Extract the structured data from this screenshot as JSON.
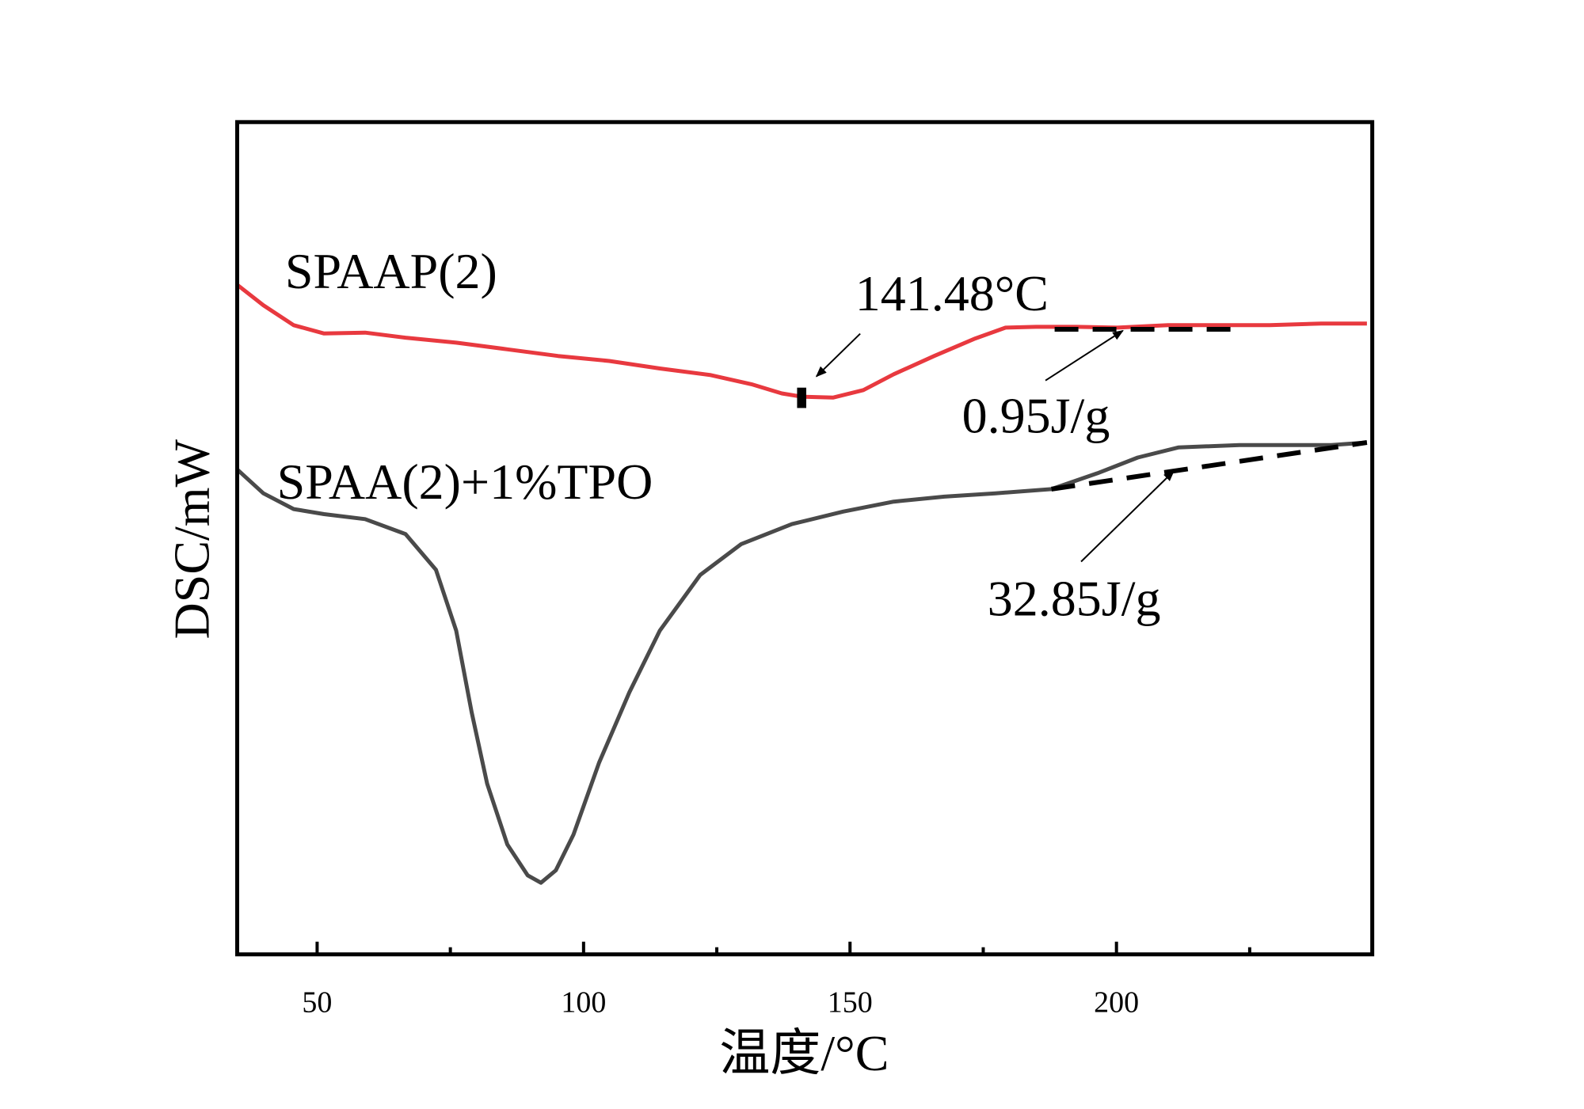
{
  "chart_data": {
    "type": "line",
    "xlabel": "温度/°C",
    "ylabel": "DSC/mW",
    "xlim": [
      35,
      248
    ],
    "ylim": [
      0,
      100
    ],
    "xticks": [
      50,
      100,
      150,
      200
    ],
    "xminorticks": [
      75,
      125,
      175,
      225
    ],
    "series": [
      {
        "name": "SPAAP(2)",
        "color": "#e8393f",
        "x": [
          35.1,
          39.9,
          45.6,
          51.3,
          59.0,
          66.6,
          76.1,
          85.7,
          95.2,
          104.8,
          114.3,
          123.9,
          131.5,
          137.2,
          141.0,
          146.8,
          152.5,
          158.2,
          165.8,
          173.5,
          179.2,
          184.9,
          192.6,
          200.2,
          209.7,
          219.3,
          228.8,
          238.4,
          247.0
        ],
        "values": [
          80.4,
          78.0,
          75.6,
          74.6,
          74.7,
          74.1,
          73.5,
          72.7,
          71.9,
          71.3,
          70.4,
          69.6,
          68.5,
          67.4,
          67.0,
          66.9,
          67.8,
          69.7,
          71.9,
          74.0,
          75.3,
          75.4,
          75.4,
          75.3,
          75.6,
          75.6,
          75.6,
          75.8,
          75.8
        ]
      },
      {
        "name": "SPAA(2)+1%TPO",
        "color": "#4a4a4a",
        "x": [
          35.1,
          39.9,
          45.6,
          51.3,
          59.0,
          66.6,
          72.3,
          76.1,
          79.0,
          81.9,
          85.7,
          89.5,
          92.0,
          94.8,
          98.1,
          102.9,
          108.6,
          114.3,
          121.9,
          129.6,
          139.1,
          148.7,
          158.2,
          167.7,
          177.3,
          187.8,
          196.4,
          204.0,
          211.6,
          223.1,
          232.6,
          240.3,
          247.0
        ],
        "values": [
          58.2,
          55.4,
          53.5,
          52.9,
          52.3,
          50.5,
          46.2,
          38.9,
          29.1,
          20.5,
          13.2,
          9.5,
          8.6,
          10.1,
          14.4,
          23.0,
          31.5,
          38.9,
          45.6,
          49.3,
          51.7,
          53.2,
          54.4,
          55.0,
          55.4,
          55.9,
          57.8,
          59.7,
          60.9,
          61.2,
          61.2,
          61.2,
          61.5
        ]
      }
    ],
    "baselines": [
      {
        "x": [
          188.4,
          223.1
        ],
        "values": [
          75.1,
          75.1
        ]
      },
      {
        "x": [
          187.8,
          247.0
        ],
        "values": [
          55.9,
          61.5
        ]
      }
    ],
    "annotations": [
      "141.48°C",
      "0.95J/g",
      "32.85J/g"
    ]
  }
}
